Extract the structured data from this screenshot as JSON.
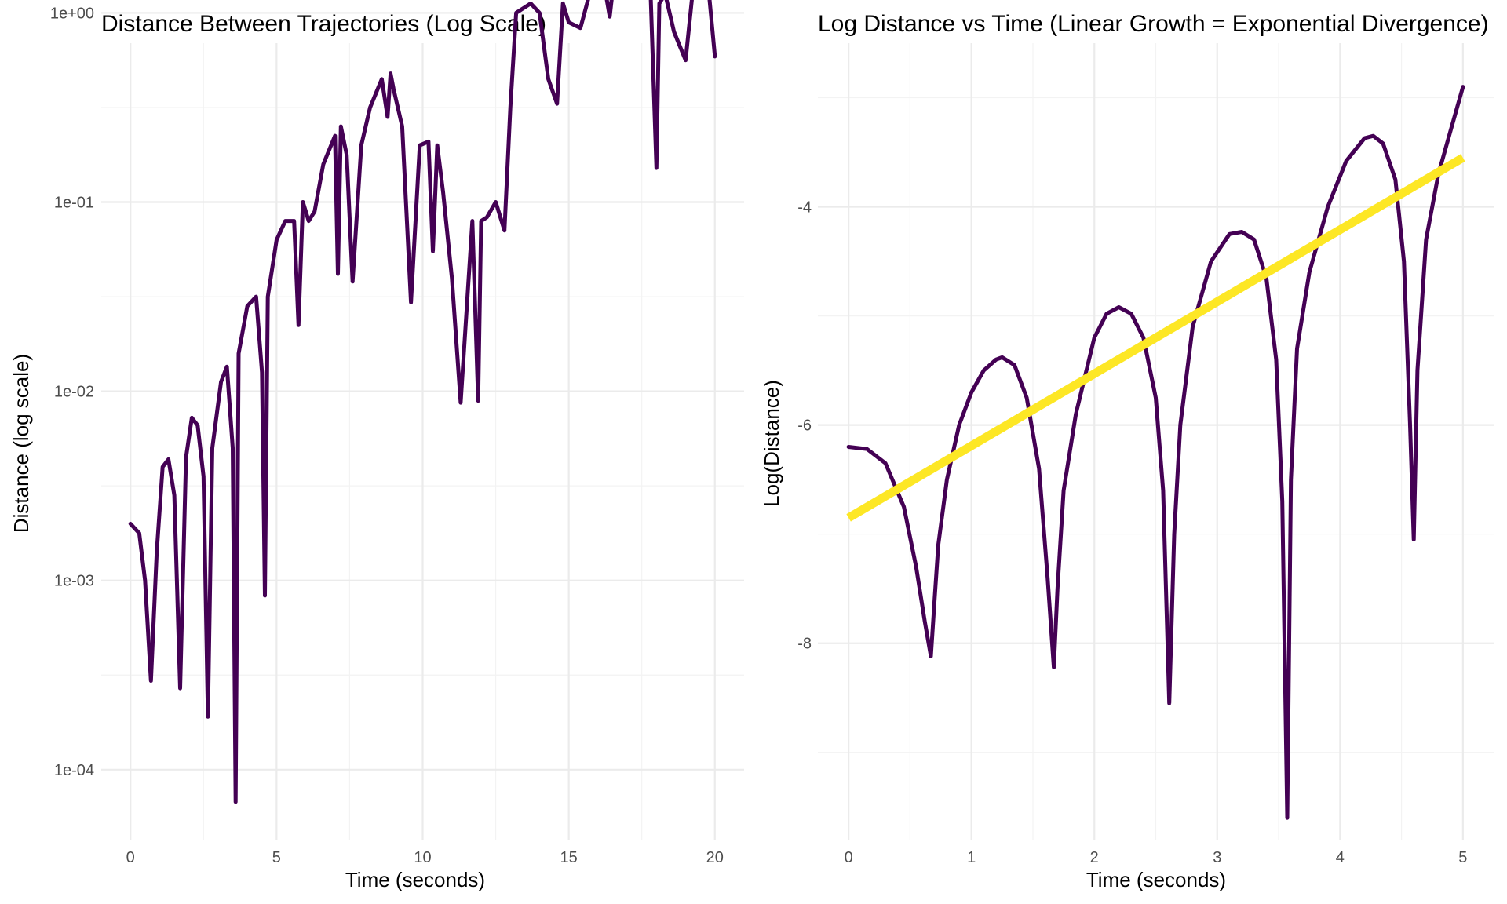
{
  "chart_data": [
    {
      "type": "line",
      "title": "Distance Between Trajectories (Log Scale)",
      "xlabel": "Time (seconds)",
      "ylabel": "Distance (log scale)",
      "y_scale": "log10",
      "xlim": [
        -1.0,
        21.0
      ],
      "ylim_log10": [
        -4.37,
        -0.16
      ],
      "x_ticks": [
        0,
        5,
        10,
        15,
        20
      ],
      "x_tick_labels": [
        "0",
        "5",
        "10",
        "15",
        "20"
      ],
      "y_ticks_log10": [
        -4,
        -3,
        -2,
        -1,
        0
      ],
      "y_tick_labels": [
        "1e-04",
        "1e-03",
        "1e-02",
        "1e-01",
        "1e+00"
      ],
      "grid": true,
      "series": [
        {
          "name": "distance",
          "color": "#440154",
          "x": [
            0,
            0.3,
            0.5,
            0.7,
            0.9,
            1.1,
            1.3,
            1.5,
            1.7,
            1.9,
            2.1,
            2.3,
            2.5,
            2.65,
            2.8,
            3.1,
            3.3,
            3.5,
            3.6,
            3.7,
            4.0,
            4.3,
            4.5,
            4.6,
            4.7,
            5.0,
            5.3,
            5.6,
            5.75,
            5.9,
            6.1,
            6.3,
            6.6,
            7.0,
            7.1,
            7.2,
            7.4,
            7.6,
            7.9,
            8.2,
            8.6,
            8.8,
            8.9,
            9.0,
            9.3,
            9.6,
            9.9,
            10.2,
            10.35,
            10.5,
            10.7,
            11.0,
            11.3,
            11.7,
            11.9,
            12.0,
            12.2,
            12.5,
            12.8,
            13.0,
            13.2,
            13.5,
            13.7,
            14.0,
            14.3,
            14.6,
            14.8,
            15.0,
            15.4,
            15.8,
            16.1,
            16.4,
            16.6,
            16.8,
            17.1,
            17.5,
            17.8,
            18.0,
            18.1,
            18.3,
            18.6,
            19.0,
            19.3,
            19.6,
            19.8,
            20.0
          ],
          "y_log10": [
            -2.7,
            -2.75,
            -3.0,
            -3.53,
            -2.85,
            -2.4,
            -2.36,
            -2.55,
            -3.57,
            -2.35,
            -2.14,
            -2.18,
            -2.45,
            -3.72,
            -2.3,
            -1.95,
            -1.87,
            -2.3,
            -4.17,
            -1.8,
            -1.55,
            -1.5,
            -1.9,
            -3.08,
            -1.5,
            -1.2,
            -1.1,
            -1.1,
            -1.65,
            -1.0,
            -1.1,
            -1.05,
            -0.8,
            -0.65,
            -1.38,
            -0.6,
            -0.75,
            -1.42,
            -0.7,
            -0.5,
            -0.35,
            -0.55,
            -0.32,
            -0.4,
            -0.6,
            -1.53,
            -0.7,
            -0.68,
            -1.26,
            -0.7,
            -0.95,
            -1.4,
            -2.06,
            -1.1,
            -2.05,
            -1.1,
            -1.08,
            -1.0,
            -1.15,
            -0.5,
            0.0,
            0.03,
            0.05,
            0.0,
            -0.35,
            -0.48,
            0.05,
            -0.05,
            -0.08,
            0.15,
            0.25,
            -0.02,
            0.25,
            0.2,
            0.15,
            0.2,
            0.1,
            -0.82,
            0.05,
            0.1,
            -0.1,
            -0.25,
            0.2,
            0.28,
            0.1,
            -0.23
          ]
        }
      ]
    },
    {
      "type": "line",
      "title": "Log Distance vs Time (Linear Growth = Exponential Divergence)",
      "xlabel": "Time (seconds)",
      "ylabel": "Log(Distance)",
      "xlim": [
        -0.25,
        5.25
      ],
      "ylim": [
        -9.8,
        -2.5
      ],
      "x_ticks": [
        0,
        1,
        2,
        3,
        4,
        5
      ],
      "x_tick_labels": [
        "0",
        "1",
        "2",
        "3",
        "4",
        "5"
      ],
      "y_ticks": [
        -8,
        -6,
        -4
      ],
      "y_tick_labels": [
        "-8",
        "-6",
        "-4"
      ],
      "grid": true,
      "series": [
        {
          "name": "log_distance",
          "color": "#440154",
          "x": [
            0,
            0.15,
            0.3,
            0.45,
            0.55,
            0.62,
            0.67,
            0.7,
            0.73,
            0.8,
            0.9,
            1.0,
            1.1,
            1.2,
            1.25,
            1.35,
            1.45,
            1.55,
            1.62,
            1.67,
            1.7,
            1.75,
            1.85,
            2.0,
            2.1,
            2.2,
            2.3,
            2.4,
            2.5,
            2.56,
            2.61,
            2.65,
            2.7,
            2.8,
            2.95,
            3.1,
            3.2,
            3.3,
            3.4,
            3.48,
            3.53,
            3.57,
            3.6,
            3.65,
            3.75,
            3.9,
            4.05,
            4.2,
            4.27,
            4.35,
            4.45,
            4.52,
            4.57,
            4.6,
            4.63,
            4.7,
            4.8,
            4.9,
            5.0
          ],
          "y": [
            -6.2,
            -6.22,
            -6.35,
            -6.75,
            -7.3,
            -7.8,
            -8.12,
            -7.6,
            -7.1,
            -6.5,
            -6.0,
            -5.7,
            -5.5,
            -5.4,
            -5.38,
            -5.45,
            -5.75,
            -6.4,
            -7.4,
            -8.22,
            -7.5,
            -6.6,
            -5.9,
            -5.2,
            -4.98,
            -4.92,
            -4.98,
            -5.2,
            -5.75,
            -6.6,
            -8.55,
            -7.0,
            -6.0,
            -5.1,
            -4.5,
            -4.25,
            -4.23,
            -4.3,
            -4.65,
            -5.4,
            -6.7,
            -9.6,
            -6.5,
            -5.3,
            -4.6,
            -4.0,
            -3.58,
            -3.37,
            -3.35,
            -3.42,
            -3.75,
            -4.5,
            -6.0,
            -7.05,
            -5.5,
            -4.3,
            -3.7,
            -3.3,
            -2.9
          ]
        },
        {
          "name": "linear_fit",
          "color": "#fde725",
          "x": [
            0,
            5
          ],
          "y": [
            -6.85,
            -3.55
          ]
        }
      ]
    }
  ]
}
